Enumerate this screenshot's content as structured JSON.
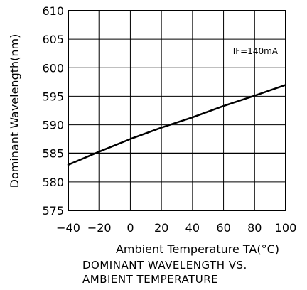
{
  "chart_data": {
    "type": "line",
    "xlabel": "Ambient Temperature TA(°C)",
    "ylabel": "Dominant Wavelength(nm)",
    "caption": [
      "DOMINANT WAVELENGTH VS.",
      "AMBIENT TEMPERATURE"
    ],
    "annotation": "IF=140mA",
    "annotation_position": "top-right",
    "xlim": [
      -40,
      100
    ],
    "ylim": [
      575,
      610
    ],
    "x_ticks": [
      -40,
      -20,
      0,
      20,
      40,
      60,
      80,
      100
    ],
    "x_tick_labels": [
      "−40",
      "−20",
      "0",
      "20",
      "40",
      "60",
      "80",
      "100"
    ],
    "y_ticks": [
      575,
      580,
      585,
      590,
      595,
      600,
      605,
      610
    ],
    "y_tick_labels": [
      "575",
      "580",
      "585",
      "590",
      "595",
      "600",
      "605",
      "610"
    ],
    "grid": true,
    "reference_lines": {
      "x": -20,
      "y": 585
    },
    "series": [
      {
        "x": [
          -40,
          -20,
          0,
          20,
          40,
          60,
          80,
          100
        ],
        "y": [
          583.0,
          585.3,
          587.5,
          589.5,
          591.3,
          593.3,
          595.1,
          597.0
        ]
      }
    ],
    "colors": {
      "line": "#000000",
      "grid": "#000000",
      "background": "#ffffff"
    }
  }
}
